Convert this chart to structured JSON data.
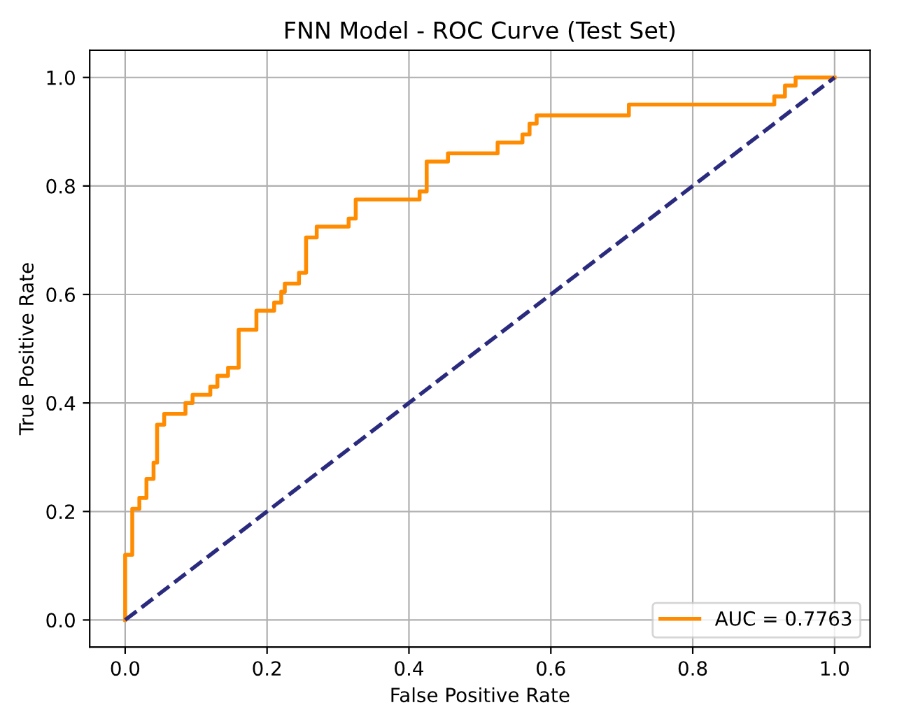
{
  "chart_data": {
    "type": "line",
    "title": "FNN Model - ROC Curve (Test Set)",
    "xlabel": "False Positive Rate",
    "ylabel": "True Positive Rate",
    "series": [
      {
        "name": "AUC = 0.7763",
        "color": "#ff8c00",
        "line_style": "solid",
        "x": [
          0,
          0,
          0.01,
          0.01,
          0.02,
          0.02,
          0.03,
          0.03,
          0.04,
          0.04,
          0.045,
          0.045,
          0.055,
          0.055,
          0.085,
          0.085,
          0.095,
          0.095,
          0.12,
          0.12,
          0.13,
          0.13,
          0.145,
          0.145,
          0.16,
          0.16,
          0.185,
          0.185,
          0.21,
          0.21,
          0.22,
          0.22,
          0.225,
          0.225,
          0.245,
          0.245,
          0.255,
          0.255,
          0.27,
          0.27,
          0.315,
          0.315,
          0.325,
          0.325,
          0.415,
          0.415,
          0.425,
          0.425,
          0.455,
          0.455,
          0.525,
          0.525,
          0.56,
          0.56,
          0.57,
          0.57,
          0.58,
          0.58,
          0.71,
          0.71,
          0.915,
          0.915,
          0.93,
          0.93,
          0.945,
          0.945,
          1.0
        ],
        "values": [
          0,
          0.12,
          0.12,
          0.205,
          0.205,
          0.225,
          0.225,
          0.26,
          0.26,
          0.29,
          0.29,
          0.36,
          0.36,
          0.38,
          0.38,
          0.4,
          0.4,
          0.415,
          0.415,
          0.43,
          0.43,
          0.45,
          0.45,
          0.465,
          0.465,
          0.535,
          0.535,
          0.57,
          0.57,
          0.585,
          0.585,
          0.605,
          0.605,
          0.62,
          0.62,
          0.64,
          0.64,
          0.705,
          0.705,
          0.725,
          0.725,
          0.74,
          0.74,
          0.775,
          0.775,
          0.79,
          0.79,
          0.845,
          0.845,
          0.86,
          0.86,
          0.88,
          0.88,
          0.895,
          0.895,
          0.915,
          0.915,
          0.93,
          0.93,
          0.95,
          0.95,
          0.965,
          0.965,
          0.985,
          0.985,
          1.0,
          1.0
        ]
      },
      {
        "color": "#2a2a7e",
        "line_style": "dashed",
        "x": [
          0,
          1
        ],
        "values": [
          0,
          1
        ]
      }
    ],
    "xlim": [
      -0.05,
      1.05
    ],
    "ylim": [
      -0.05,
      1.05
    ],
    "xticks": [
      {
        "value": 0,
        "label": "0.0"
      },
      {
        "value": 0.2,
        "label": "0.2"
      },
      {
        "value": 0.4,
        "label": "0.4"
      },
      {
        "value": 0.6,
        "label": "0.6"
      },
      {
        "value": 0.8,
        "label": "0.8"
      },
      {
        "value": 1,
        "label": "1.0"
      }
    ],
    "yticks": [
      {
        "value": 0,
        "label": "0.0"
      },
      {
        "value": 0.2,
        "label": "0.2"
      },
      {
        "value": 0.4,
        "label": "0.4"
      },
      {
        "value": 0.6,
        "label": "0.6"
      },
      {
        "value": 0.8,
        "label": "0.8"
      },
      {
        "value": 1,
        "label": "1.0"
      }
    ],
    "grid": true,
    "legend": "bottom right"
  }
}
